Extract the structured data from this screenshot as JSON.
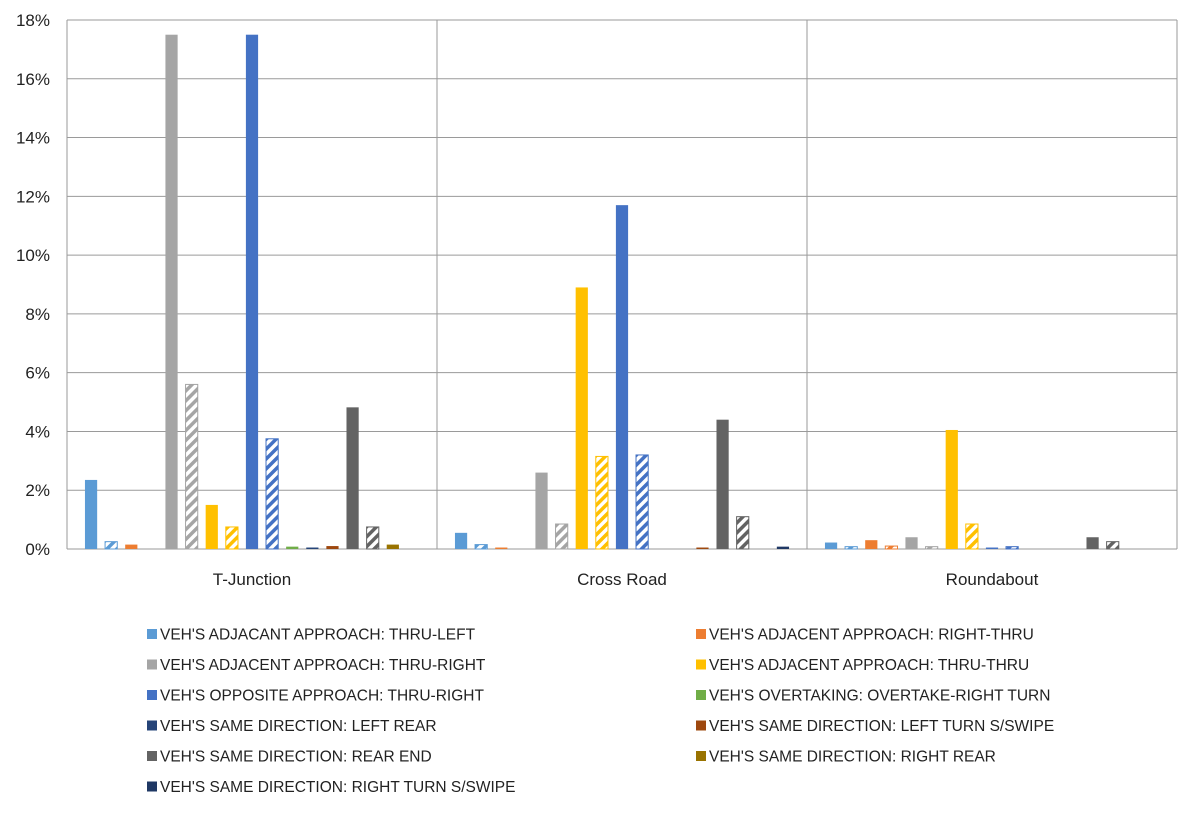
{
  "chart_data": {
    "type": "bar",
    "categories": [
      "T-Junction",
      "Cross Road",
      "Roundabout"
    ],
    "y_unit": "%",
    "ylim": [
      0,
      18
    ],
    "yticks": [
      0,
      2,
      4,
      6,
      8,
      10,
      12,
      14,
      16,
      18
    ],
    "ytick_labels": [
      "0%",
      "2%",
      "4%",
      "6%",
      "8%",
      "10%",
      "12%",
      "14%",
      "16%",
      "18%"
    ],
    "grid": {
      "horizontal": true,
      "category_separators": true
    },
    "legend_position": "bottom",
    "colors": {
      "light_blue": "#5B9BD5",
      "orange": "#ED7D31",
      "gray": "#A5A5A5",
      "gold": "#FFC000",
      "blue": "#4472C4",
      "green": "#70AD47",
      "navy": "#264478",
      "brown": "#9E480E",
      "dark_gray": "#636363",
      "olive": "#997300",
      "dark_navy": "#1F3864"
    },
    "series": [
      {
        "legend": "VEH'S ADJACANT APPROACH: THRU-LEFT",
        "color": "#5B9BD5",
        "pattern": "solid",
        "values": [
          2.35,
          0.55,
          0.22
        ]
      },
      {
        "legend": "",
        "color": "#5B9BD5",
        "pattern": "hatched",
        "values": [
          0.25,
          0.15,
          0.08
        ]
      },
      {
        "legend": "VEH'S ADJACENT APPROACH: RIGHT-THRU",
        "color": "#ED7D31",
        "pattern": "solid",
        "values": [
          0.15,
          0.05,
          0.3
        ]
      },
      {
        "legend": "",
        "color": "#ED7D31",
        "pattern": "hatched",
        "values": [
          0,
          0,
          0.1
        ]
      },
      {
        "legend": "VEH'S ADJACENT APPROACH: THRU-RIGHT",
        "color": "#A5A5A5",
        "pattern": "solid",
        "values": [
          17.5,
          2.6,
          0.4
        ]
      },
      {
        "legend": "",
        "color": "#A5A5A5",
        "pattern": "hatched",
        "values": [
          5.6,
          0.85,
          0.08
        ]
      },
      {
        "legend": "VEH'S ADJACENT APPROACH: THRU-THRU",
        "color": "#FFC000",
        "pattern": "solid",
        "values": [
          1.5,
          8.9,
          4.05
        ]
      },
      {
        "legend": "",
        "color": "#FFC000",
        "pattern": "hatched",
        "values": [
          0.75,
          3.15,
          0.85
        ]
      },
      {
        "legend": "VEH'S OPPOSITE APPROACH: THRU-RIGHT",
        "color": "#4472C4",
        "pattern": "solid",
        "values": [
          17.5,
          11.7,
          0.05
        ]
      },
      {
        "legend": "",
        "color": "#4472C4",
        "pattern": "hatched",
        "values": [
          3.75,
          3.2,
          0.08
        ]
      },
      {
        "legend": "VEH'S OVERTAKING: OVERTAKE-RIGHT TURN",
        "color": "#70AD47",
        "pattern": "solid",
        "values": [
          0.08,
          0,
          0
        ]
      },
      {
        "legend": "VEH'S SAME DIRECTION: LEFT REAR",
        "color": "#264478",
        "pattern": "solid",
        "values": [
          0.05,
          0,
          0
        ]
      },
      {
        "legend": "VEH'S SAME DIRECTION: LEFT TURN S/SWIPE",
        "color": "#9E480E",
        "pattern": "solid",
        "values": [
          0.1,
          0.05,
          0
        ]
      },
      {
        "legend": "VEH'S SAME DIRECTION: REAR END",
        "color": "#636363",
        "pattern": "solid",
        "values": [
          4.82,
          4.4,
          0.4
        ]
      },
      {
        "legend": "",
        "color": "#636363",
        "pattern": "hatched",
        "values": [
          0.75,
          1.1,
          0.25
        ]
      },
      {
        "legend": "VEH'S SAME DIRECTION: RIGHT REAR",
        "color": "#997300",
        "pattern": "solid",
        "values": [
          0.15,
          0,
          0
        ]
      },
      {
        "legend": "VEH'S SAME DIRECTION: RIGHT TURN S/SWIPE",
        "color": "#1F3864",
        "pattern": "solid",
        "values": [
          0,
          0.08,
          0
        ]
      }
    ],
    "legend_entries": [
      {
        "label": "VEH'S ADJACANT APPROACH: THRU-LEFT",
        "color": "#5B9BD5"
      },
      {
        "label": "VEH'S ADJACENT APPROACH: RIGHT-THRU",
        "color": "#ED7D31"
      },
      {
        "label": "VEH'S ADJACENT APPROACH: THRU-RIGHT",
        "color": "#A5A5A5"
      },
      {
        "label": "VEH'S ADJACENT APPROACH: THRU-THRU",
        "color": "#FFC000"
      },
      {
        "label": "VEH'S OPPOSITE APPROACH: THRU-RIGHT",
        "color": "#4472C4"
      },
      {
        "label": "VEH'S OVERTAKING: OVERTAKE-RIGHT TURN",
        "color": "#70AD47"
      },
      {
        "label": "VEH'S SAME DIRECTION: LEFT REAR",
        "color": "#264478"
      },
      {
        "label": "VEH'S SAME DIRECTION: LEFT TURN S/SWIPE",
        "color": "#9E480E"
      },
      {
        "label": "VEH'S SAME DIRECTION: REAR END",
        "color": "#636363"
      },
      {
        "label": "VEH'S SAME DIRECTION: RIGHT REAR",
        "color": "#997300"
      },
      {
        "label": "VEH'S SAME DIRECTION: RIGHT TURN S/SWIPE",
        "color": "#1F3864"
      }
    ]
  }
}
